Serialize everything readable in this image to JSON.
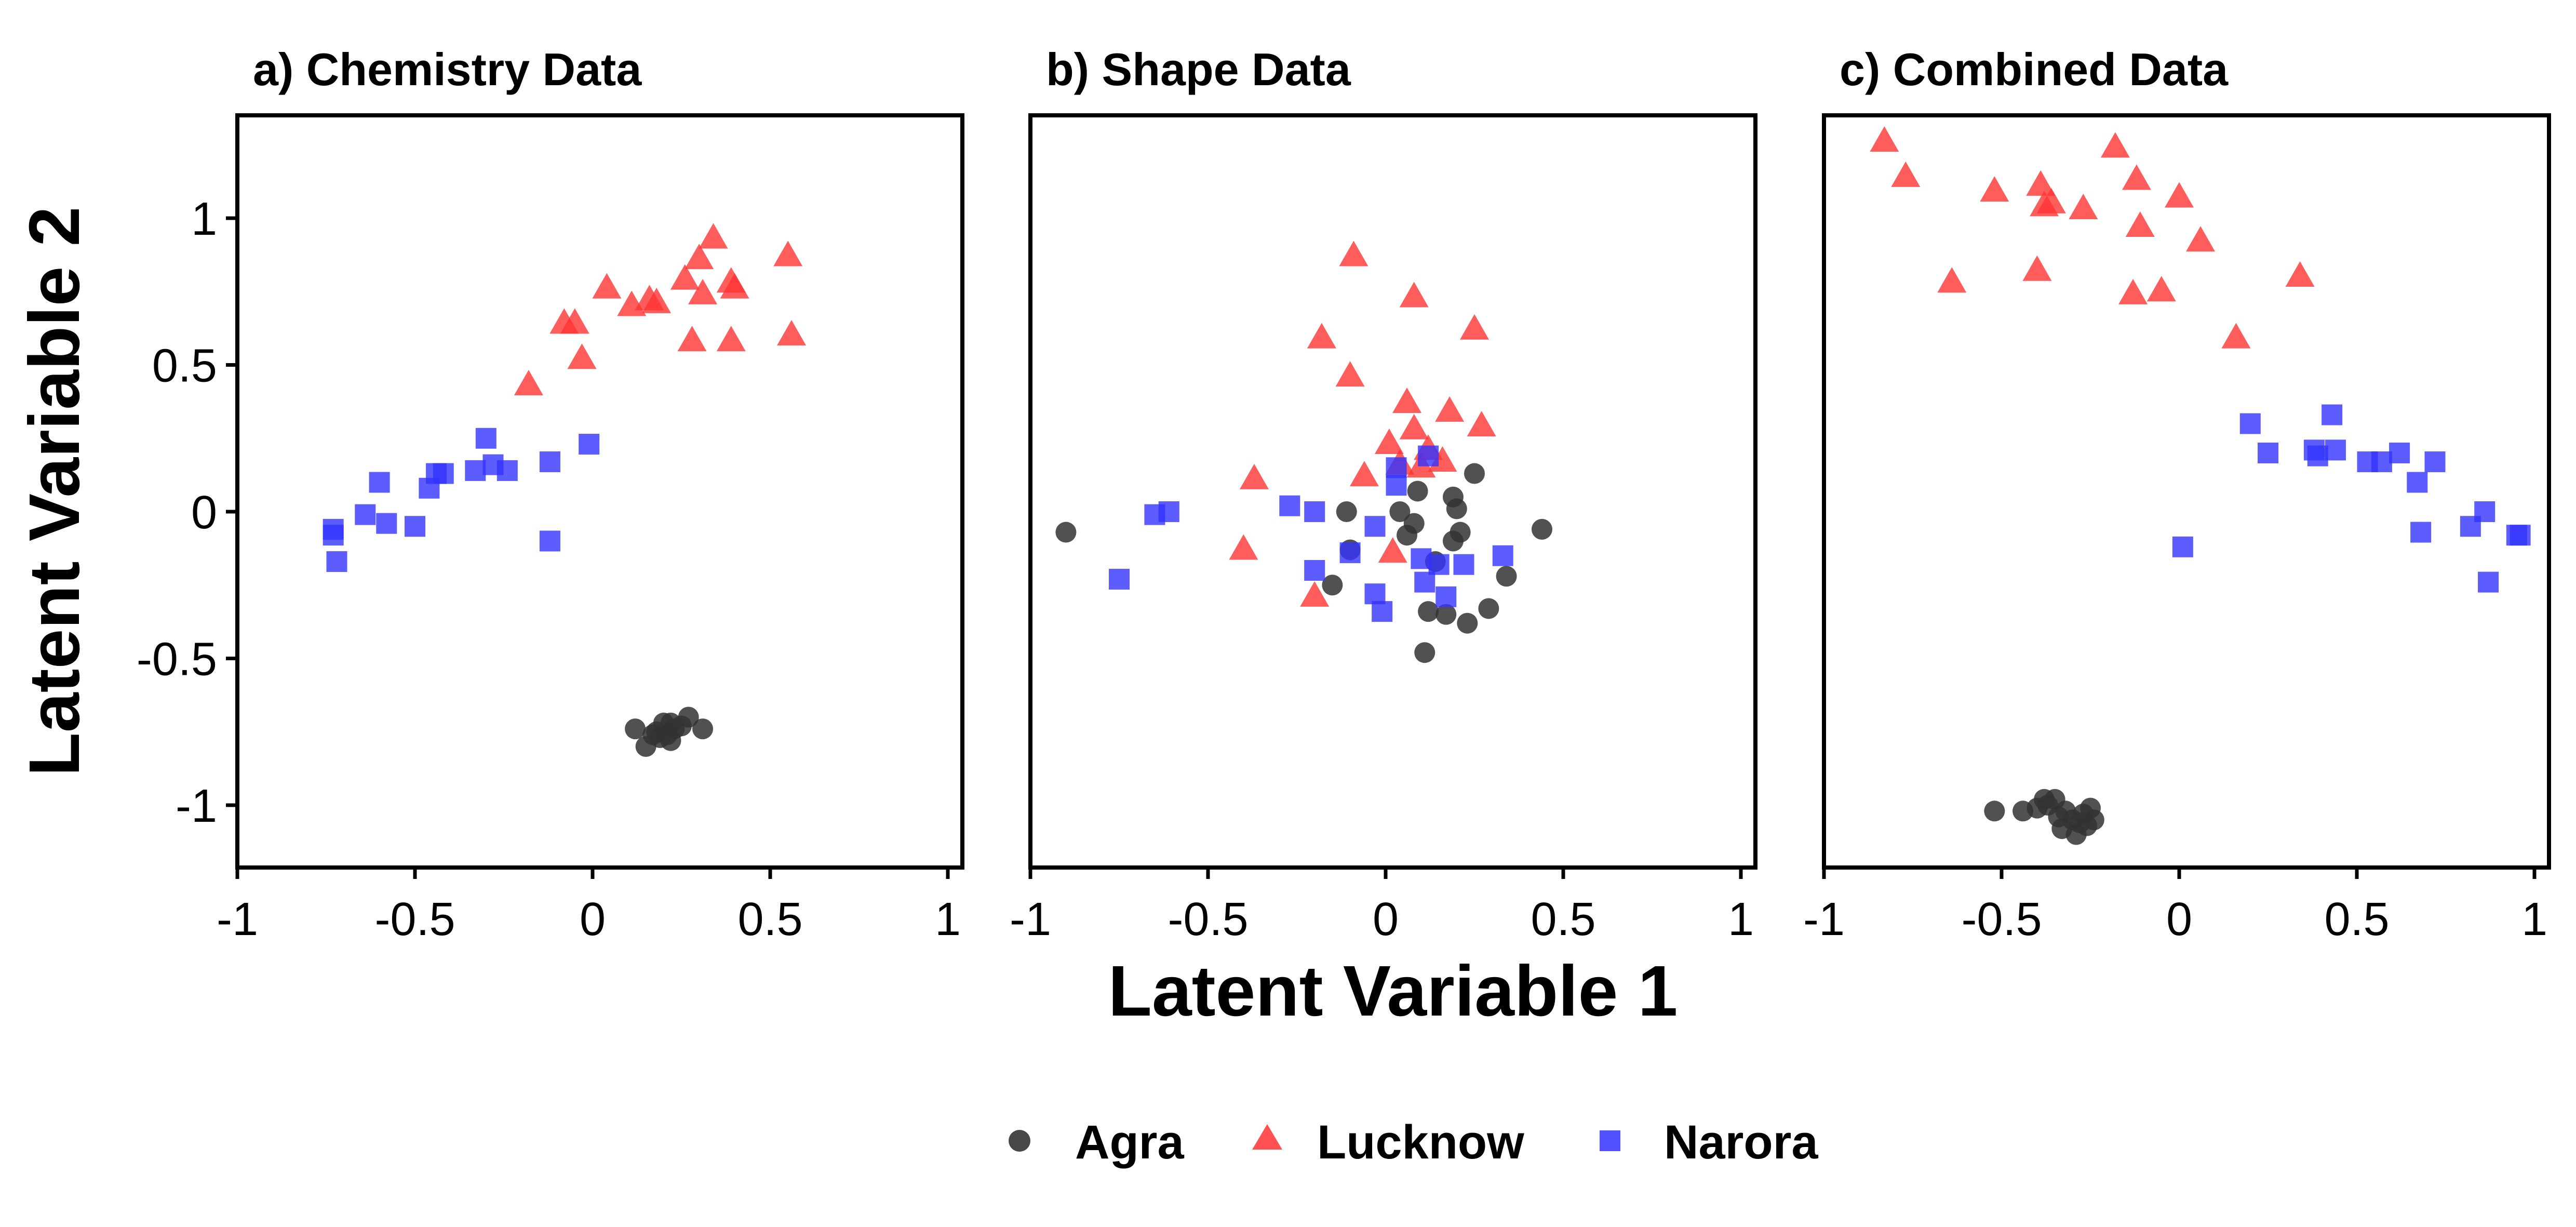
{
  "chart_data": {
    "type": "scatter",
    "xlabel": "Latent Variable 1",
    "ylabel": "Latent Variable 2",
    "xlim": [
      -1,
      1
    ],
    "ylim": [
      -1.22,
      1.35
    ],
    "xticks": [
      "-1",
      "-0.5",
      "0",
      "0.5",
      "1"
    ],
    "yticks": [
      "1",
      "0.5",
      "0",
      "-0.5",
      "-1"
    ],
    "legend_position": "bottom",
    "legend": [
      {
        "name": "Agra",
        "marker": "circle",
        "color": "#333333"
      },
      {
        "name": "Lucknow",
        "marker": "triangle",
        "color": "#ff3333"
      },
      {
        "name": "Narora",
        "marker": "square",
        "color": "#3333ff"
      }
    ],
    "panels": [
      {
        "title": "a) Chemistry Data",
        "series": [
          {
            "name": "Agra",
            "points": [
              [
                0.12,
                -0.74
              ],
              [
                0.15,
                -0.8
              ],
              [
                0.17,
                -0.76
              ],
              [
                0.18,
                -0.75
              ],
              [
                0.2,
                -0.72
              ],
              [
                0.21,
                -0.76
              ],
              [
                0.22,
                -0.78
              ],
              [
                0.23,
                -0.74
              ],
              [
                0.25,
                -0.73
              ],
              [
                0.27,
                -0.7
              ],
              [
                0.31,
                -0.74
              ],
              [
                0.19,
                -0.77
              ],
              [
                0.22,
                -0.72
              ]
            ]
          },
          {
            "name": "Lucknow",
            "points": [
              [
                -0.18,
                0.43
              ],
              [
                -0.08,
                0.64
              ],
              [
                -0.05,
                0.64
              ],
              [
                -0.03,
                0.52
              ],
              [
                0.04,
                0.76
              ],
              [
                0.11,
                0.7
              ],
              [
                0.16,
                0.72
              ],
              [
                0.18,
                0.71
              ],
              [
                0.26,
                0.79
              ],
              [
                0.28,
                0.58
              ],
              [
                0.3,
                0.86
              ],
              [
                0.31,
                0.74
              ],
              [
                0.34,
                0.93
              ],
              [
                0.39,
                0.58
              ],
              [
                0.39,
                0.78
              ],
              [
                0.4,
                0.76
              ],
              [
                0.55,
                0.87
              ],
              [
                0.56,
                0.6
              ]
            ]
          },
          {
            "name": "Narora",
            "points": [
              [
                -0.73,
                -0.08
              ],
              [
                -0.73,
                -0.06
              ],
              [
                -0.72,
                -0.17
              ],
              [
                -0.64,
                -0.01
              ],
              [
                -0.6,
                0.1
              ],
              [
                -0.58,
                -0.04
              ],
              [
                -0.5,
                -0.05
              ],
              [
                -0.46,
                0.08
              ],
              [
                -0.44,
                0.13
              ],
              [
                -0.42,
                0.13
              ],
              [
                -0.33,
                0.14
              ],
              [
                -0.3,
                0.25
              ],
              [
                -0.28,
                0.16
              ],
              [
                -0.24,
                0.14
              ],
              [
                -0.12,
                0.17
              ],
              [
                -0.12,
                -0.1
              ],
              [
                -0.01,
                0.23
              ]
            ]
          }
        ]
      },
      {
        "title": "b) Shape Data",
        "series": [
          {
            "name": "Agra",
            "points": [
              [
                -0.9,
                -0.07
              ],
              [
                -0.15,
                -0.25
              ],
              [
                -0.11,
                0.0
              ],
              [
                -0.1,
                -0.13
              ],
              [
                0.04,
                0.0
              ],
              [
                0.06,
                -0.08
              ],
              [
                0.08,
                -0.04
              ],
              [
                0.09,
                0.07
              ],
              [
                0.11,
                -0.48
              ],
              [
                0.12,
                -0.34
              ],
              [
                0.14,
                -0.17
              ],
              [
                0.17,
                -0.35
              ],
              [
                0.19,
                0.05
              ],
              [
                0.19,
                -0.1
              ],
              [
                0.2,
                0.01
              ],
              [
                0.21,
                -0.07
              ],
              [
                0.23,
                -0.38
              ],
              [
                0.25,
                0.13
              ],
              [
                0.29,
                -0.33
              ],
              [
                0.34,
                -0.22
              ],
              [
                0.44,
                -0.06
              ]
            ]
          },
          {
            "name": "Lucknow",
            "points": [
              [
                -0.4,
                -0.13
              ],
              [
                -0.37,
                0.11
              ],
              [
                -0.2,
                -0.29
              ],
              [
                -0.18,
                0.59
              ],
              [
                -0.1,
                0.46
              ],
              [
                -0.09,
                0.87
              ],
              [
                -0.06,
                0.12
              ],
              [
                0.01,
                0.23
              ],
              [
                0.02,
                -0.14
              ],
              [
                0.04,
                0.16
              ],
              [
                0.06,
                0.37
              ],
              [
                0.08,
                0.28
              ],
              [
                0.08,
                0.73
              ],
              [
                0.1,
                0.15
              ],
              [
                0.12,
                0.21
              ],
              [
                0.16,
                0.17
              ],
              [
                0.18,
                0.34
              ],
              [
                0.25,
                0.62
              ],
              [
                0.27,
                0.29
              ]
            ]
          },
          {
            "name": "Narora",
            "points": [
              [
                -0.75,
                -0.23
              ],
              [
                -0.65,
                -0.01
              ],
              [
                -0.61,
                0.0
              ],
              [
                -0.27,
                0.02
              ],
              [
                -0.2,
                0.0
              ],
              [
                -0.2,
                -0.2
              ],
              [
                -0.1,
                -0.14
              ],
              [
                -0.03,
                -0.28
              ],
              [
                -0.03,
                -0.05
              ],
              [
                -0.01,
                -0.34
              ],
              [
                0.03,
                0.09
              ],
              [
                0.03,
                0.15
              ],
              [
                0.1,
                -0.16
              ],
              [
                0.11,
                -0.24
              ],
              [
                0.12,
                0.19
              ],
              [
                0.15,
                -0.18
              ],
              [
                0.17,
                -0.29
              ],
              [
                0.22,
                -0.18
              ],
              [
                0.33,
                -0.15
              ]
            ]
          }
        ]
      },
      {
        "title": "c) Combined Data",
        "series": [
          {
            "name": "Agra",
            "points": [
              [
                -0.52,
                -1.02
              ],
              [
                -0.44,
                -1.02
              ],
              [
                -0.4,
                -1.01
              ],
              [
                -0.38,
                -0.98
              ],
              [
                -0.37,
                -1.0
              ],
              [
                -0.35,
                -0.98
              ],
              [
                -0.34,
                -1.04
              ],
              [
                -0.33,
                -1.08
              ],
              [
                -0.32,
                -1.02
              ],
              [
                -0.3,
                -1.05
              ],
              [
                -0.29,
                -1.1
              ],
              [
                -0.28,
                -1.06
              ],
              [
                -0.27,
                -1.03
              ],
              [
                -0.26,
                -1.07
              ],
              [
                -0.25,
                -1.01
              ],
              [
                -0.24,
                -1.05
              ]
            ]
          },
          {
            "name": "Lucknow",
            "points": [
              [
                -0.83,
                1.26
              ],
              [
                -0.77,
                1.14
              ],
              [
                -0.64,
                0.78
              ],
              [
                -0.52,
                1.09
              ],
              [
                -0.4,
                0.82
              ],
              [
                -0.39,
                1.11
              ],
              [
                -0.38,
                1.04
              ],
              [
                -0.36,
                1.05
              ],
              [
                -0.27,
                1.03
              ],
              [
                -0.18,
                1.24
              ],
              [
                -0.13,
                0.74
              ],
              [
                -0.12,
                1.13
              ],
              [
                -0.11,
                0.97
              ],
              [
                -0.05,
                0.75
              ],
              [
                0.0,
                1.07
              ],
              [
                0.06,
                0.92
              ],
              [
                0.16,
                0.59
              ],
              [
                0.34,
                0.8
              ]
            ]
          },
          {
            "name": "Narora",
            "points": [
              [
                0.01,
                -0.12
              ],
              [
                0.2,
                0.3
              ],
              [
                0.25,
                0.2
              ],
              [
                0.38,
                0.21
              ],
              [
                0.39,
                0.19
              ],
              [
                0.43,
                0.33
              ],
              [
                0.44,
                0.21
              ],
              [
                0.53,
                0.17
              ],
              [
                0.57,
                0.17
              ],
              [
                0.62,
                0.2
              ],
              [
                0.67,
                0.1
              ],
              [
                0.68,
                -0.07
              ],
              [
                0.72,
                0.17
              ],
              [
                0.82,
                -0.05
              ],
              [
                0.86,
                0.0
              ],
              [
                0.87,
                -0.24
              ],
              [
                0.95,
                -0.08
              ],
              [
                0.96,
                -0.08
              ]
            ]
          }
        ]
      }
    ]
  }
}
